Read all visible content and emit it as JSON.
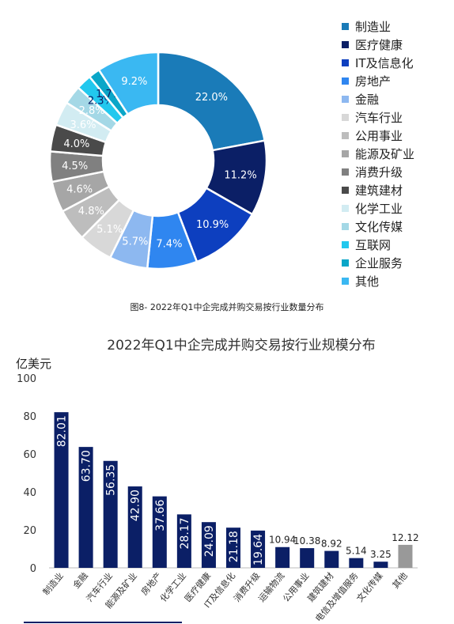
{
  "donut": {
    "caption": "图8- 2022年Q1中企完成并购交易按行业数量分布",
    "chart_data": {
      "type": "pie",
      "donut": true,
      "categories": [
        "制造业",
        "医疗健康",
        "IT及信息化",
        "房地产",
        "金融",
        "汽车行业",
        "公用事业",
        "能源及矿业",
        "消费升级",
        "建筑建材",
        "化学工业",
        "文化传媒",
        "互联网",
        "企业服务",
        "其他"
      ],
      "values": [
        22.0,
        11.2,
        10.9,
        7.4,
        5.7,
        5.1,
        4.8,
        4.6,
        4.5,
        4.0,
        3.6,
        2.8,
        2.3,
        1.7,
        9.2
      ],
      "value_labels": [
        "22.0%",
        "11.2%",
        "10.9%",
        "7.4%",
        "5.7%",
        "5.1%",
        "4.8%",
        "4.6%",
        "4.5%",
        "4.0%",
        "3.6%",
        "2.8%",
        "2.3%",
        "1.7%",
        "9.2%"
      ],
      "colors": [
        "#1a7bb8",
        "#0b1f66",
        "#0d3fbf",
        "#2f86f0",
        "#8db8f0",
        "#d8d8d8",
        "#bdbdbd",
        "#a6a6a6",
        "#808080",
        "#4a4a4a",
        "#d2ecf2",
        "#a4d8e6",
        "#22c8ee",
        "#0aa6c8",
        "#3ab8f2"
      ],
      "label_colors": [
        "#ffffff",
        "#ffffff",
        "#ffffff",
        "#ffffff",
        "#ffffff",
        "#ffffff",
        "#ffffff",
        "#ffffff",
        "#ffffff",
        "#ffffff",
        "#ffffff",
        "#ffffff",
        "#0b1f66",
        "#0b1f66",
        "#ffffff"
      ],
      "legend_position": "right"
    }
  },
  "bars": {
    "title": "2022年Q1中企完成并购交易按行业规模分布",
    "unit_label": "亿美元",
    "chart_data": {
      "type": "bar",
      "categories": [
        "制造业",
        "金融",
        "汽车行业",
        "能源及矿业",
        "房地产",
        "化学工业",
        "医疗健康",
        "IT及信息化",
        "消费升级",
        "运输物流",
        "公用事业",
        "建筑建材",
        "电信及增值服务",
        "文化传媒",
        "其他"
      ],
      "values": [
        82.01,
        63.7,
        56.35,
        42.9,
        37.66,
        28.17,
        24.09,
        21.18,
        19.64,
        10.94,
        10.38,
        8.92,
        5.14,
        3.25,
        12.12
      ],
      "value_labels": [
        "82.01",
        "63.70",
        "56.35",
        "42.90",
        "37.66",
        "28.17",
        "24.09",
        "21.18",
        "19.64",
        "10.94",
        "10.38",
        "8.92",
        "5.14",
        "3.25",
        "12.12"
      ],
      "label_inside": [
        true,
        true,
        true,
        true,
        true,
        true,
        true,
        true,
        true,
        false,
        false,
        false,
        false,
        false,
        false
      ],
      "colors": [
        "#0b1f66",
        "#0b1f66",
        "#0b1f66",
        "#0b1f66",
        "#0b1f66",
        "#0b1f66",
        "#0b1f66",
        "#0b1f66",
        "#0b1f66",
        "#0b1f66",
        "#0b1f66",
        "#0b1f66",
        "#0b1f66",
        "#0b1f66",
        "#999999"
      ],
      "ylim": [
        0,
        100
      ],
      "yticks": [
        0,
        20,
        40,
        60,
        80,
        100
      ],
      "ytick_labels": [
        "0",
        "20",
        "40",
        "60",
        "80",
        "100"
      ],
      "grid": false
    }
  }
}
